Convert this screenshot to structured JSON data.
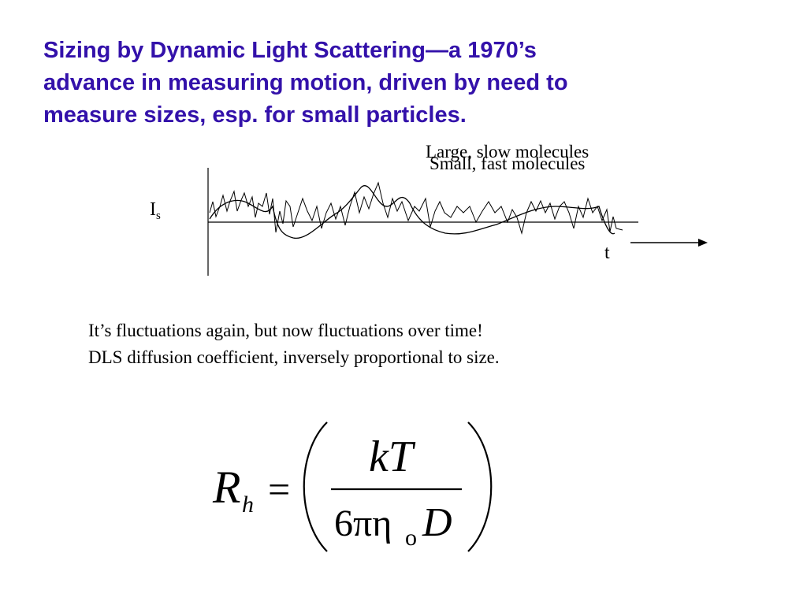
{
  "title": {
    "line1": "Sizing by Dynamic Light Scattering—a 1970’s",
    "line2": "advance in measuring motion, driven  by need to",
    "line3": "measure sizes, esp. for small particles."
  },
  "figure": {
    "legend_large": "Large, slow molecules",
    "legend_small": "Small, fast molecules",
    "y_label_main": "I",
    "y_label_sub": "s",
    "x_label": "t"
  },
  "body": {
    "line1": "It’s fluctuations again, but now fluctuations over time!",
    "line2": "DLS diffusion coefficient, inversely proportional to size."
  },
  "formula": {
    "lhs_main": "R",
    "lhs_sub": "h",
    "equals": "=",
    "numerator": "kT",
    "denominator_prefix": "6πη",
    "denominator_sub": "o",
    "denominator_var": "D"
  },
  "colors": {
    "title": "#3311aa",
    "text": "#000000"
  }
}
